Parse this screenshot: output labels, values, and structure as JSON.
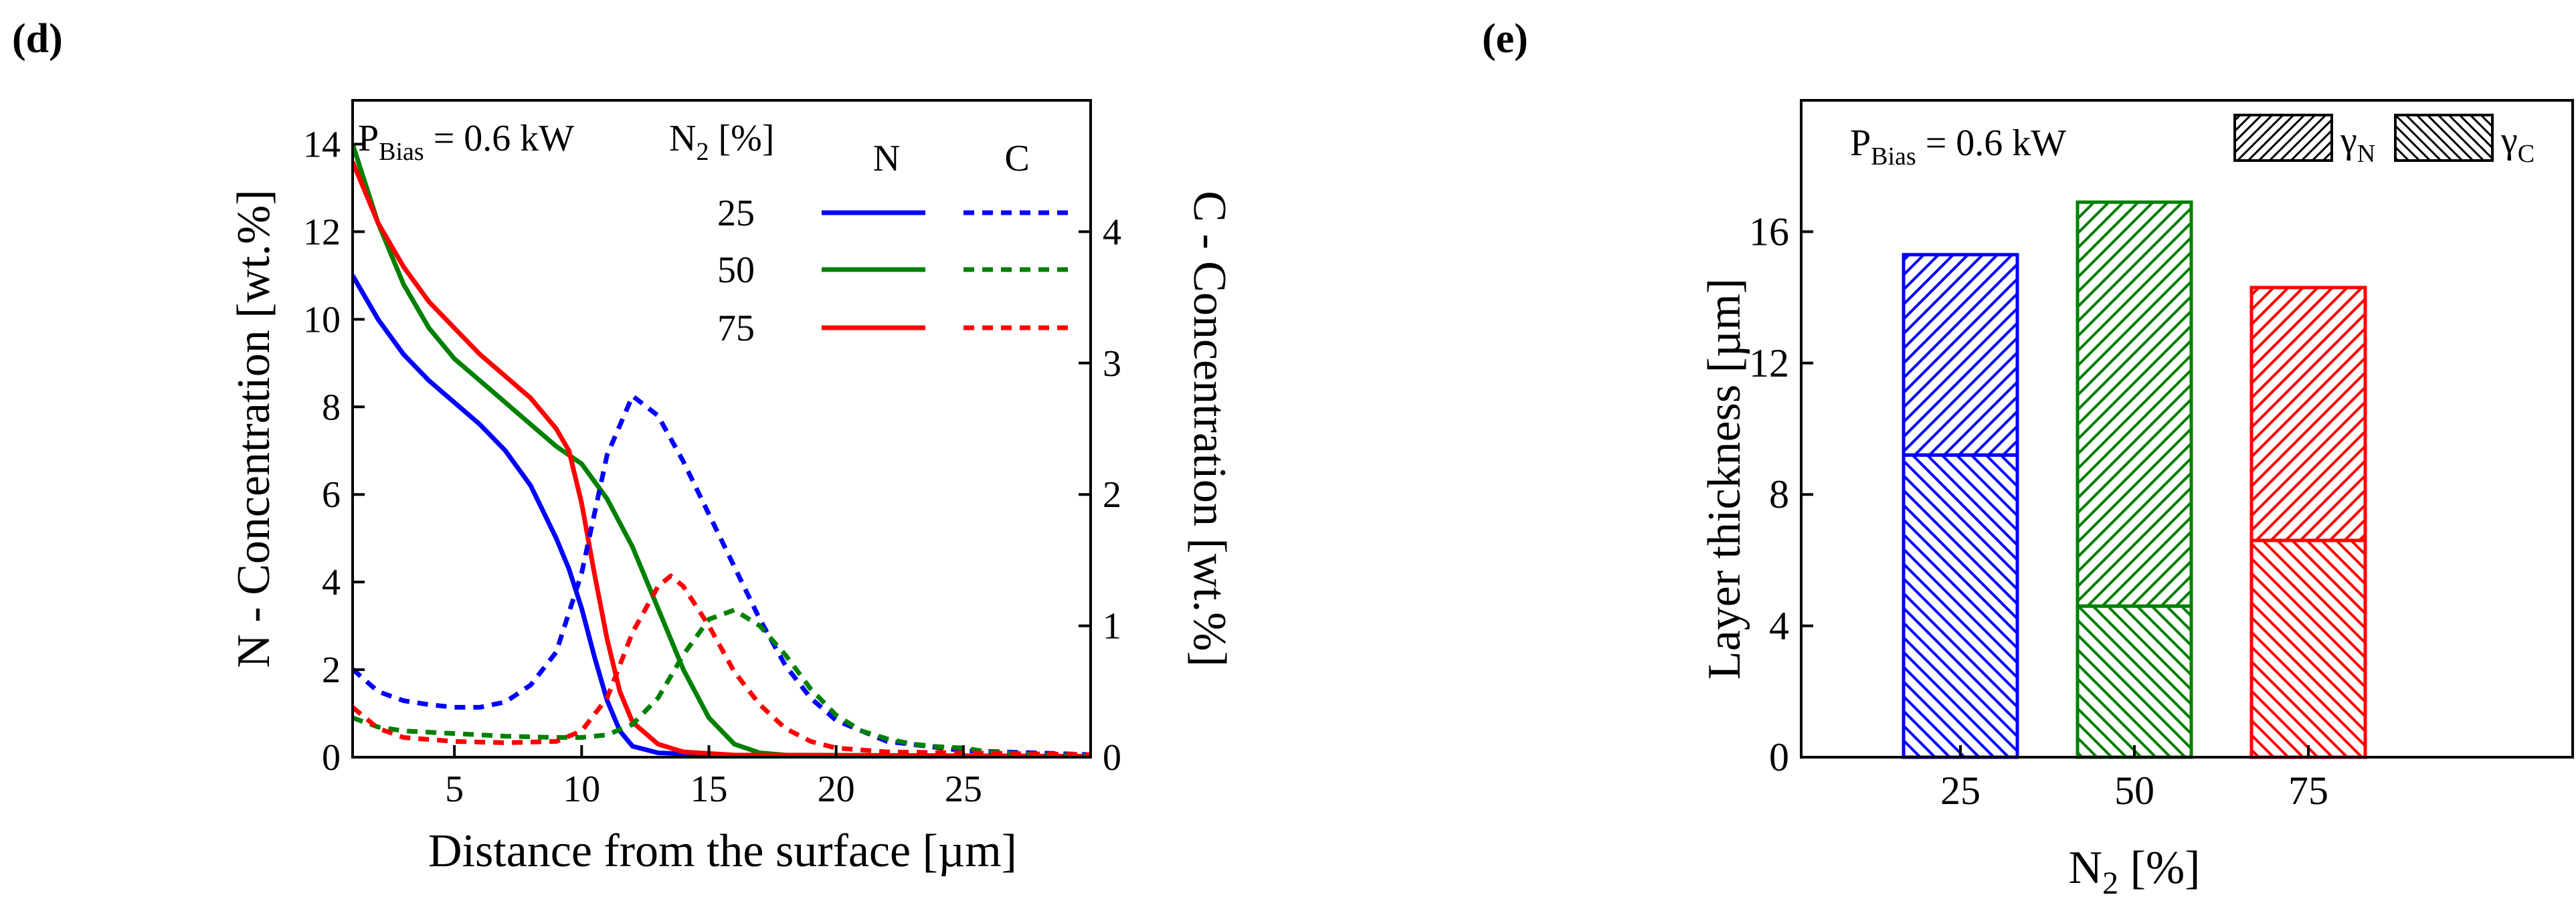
{
  "chart_data": [
    {
      "panel_label": "(d)",
      "type": "line",
      "xlabel": "Distance from the surface [µm]",
      "ylabel_left": "N - Concentration [wt.%]",
      "ylabel_right": "C - Concentration [wt.%]",
      "xlim": [
        1,
        30
      ],
      "ylim_left": [
        0,
        15
      ],
      "ylim_right": [
        0,
        5
      ],
      "x_ticks": [
        5,
        10,
        15,
        20,
        25
      ],
      "y_ticks_left": [
        0,
        2,
        4,
        6,
        8,
        10,
        12,
        14
      ],
      "y_ticks_right": [
        0,
        1,
        2,
        3,
        4
      ],
      "annotation": {
        "main": "P",
        "sub": "Bias",
        "rest": " = 0.6 kW"
      },
      "legend_header": {
        "n2_main": "N",
        "n2_sub": "2",
        "n2_rest": " [%]",
        "col_n": "N",
        "col_c": "C"
      },
      "legend_labels": [
        "25",
        "50",
        "75"
      ],
      "series": [
        {
          "name": "25",
          "element": "N",
          "axis": "left",
          "color": "#0000ff",
          "style": "solid",
          "points": [
            [
              1,
              11
            ],
            [
              2,
              10
            ],
            [
              3,
              9.2
            ],
            [
              4,
              8.6
            ],
            [
              5,
              8.1
            ],
            [
              6,
              7.6
            ],
            [
              7,
              7.0
            ],
            [
              8,
              6.2
            ],
            [
              9,
              5.0
            ],
            [
              9.5,
              4.3
            ],
            [
              10,
              3.4
            ],
            [
              10.5,
              2.3
            ],
            [
              11,
              1.3
            ],
            [
              11.5,
              0.6
            ],
            [
              12,
              0.25
            ],
            [
              13,
              0.1
            ],
            [
              15,
              0.05
            ],
            [
              20,
              0.02
            ],
            [
              30,
              0.02
            ]
          ]
        },
        {
          "name": "50",
          "element": "N",
          "axis": "left",
          "color": "#008000",
          "style": "solid",
          "points": [
            [
              1,
              14
            ],
            [
              2,
              12.2
            ],
            [
              3,
              10.8
            ],
            [
              4,
              9.8
            ],
            [
              5,
              9.1
            ],
            [
              6,
              8.6
            ],
            [
              7,
              8.1
            ],
            [
              8,
              7.6
            ],
            [
              9,
              7.1
            ],
            [
              10,
              6.7
            ],
            [
              11,
              5.9
            ],
            [
              12,
              4.8
            ],
            [
              13,
              3.4
            ],
            [
              14,
              2.0
            ],
            [
              15,
              0.9
            ],
            [
              16,
              0.3
            ],
            [
              17,
              0.1
            ],
            [
              18,
              0.05
            ],
            [
              30,
              0.02
            ]
          ]
        },
        {
          "name": "75",
          "element": "N",
          "axis": "left",
          "color": "#ff0000",
          "style": "solid",
          "points": [
            [
              1,
              13.6
            ],
            [
              2,
              12.2
            ],
            [
              3,
              11.2
            ],
            [
              4,
              10.4
            ],
            [
              5,
              9.8
            ],
            [
              6,
              9.2
            ],
            [
              7,
              8.7
            ],
            [
              8,
              8.2
            ],
            [
              9,
              7.5
            ],
            [
              9.5,
              7.0
            ],
            [
              10,
              5.8
            ],
            [
              10.5,
              4.2
            ],
            [
              11,
              2.7
            ],
            [
              11.5,
              1.5
            ],
            [
              12,
              0.8
            ],
            [
              13,
              0.3
            ],
            [
              14,
              0.12
            ],
            [
              16,
              0.05
            ],
            [
              30,
              0.02
            ]
          ]
        },
        {
          "name": "25",
          "element": "C",
          "axis": "right",
          "color": "#0000ff",
          "style": "dashed",
          "points": [
            [
              1,
              0.67
            ],
            [
              2,
              0.5
            ],
            [
              3,
              0.43
            ],
            [
              4,
              0.4
            ],
            [
              5,
              0.38
            ],
            [
              6,
              0.38
            ],
            [
              7,
              0.42
            ],
            [
              8,
              0.55
            ],
            [
              9,
              0.8
            ],
            [
              10,
              1.4
            ],
            [
              11,
              2.3
            ],
            [
              12,
              2.75
            ],
            [
              13,
              2.6
            ],
            [
              14,
              2.25
            ],
            [
              15,
              1.85
            ],
            [
              16,
              1.45
            ],
            [
              17,
              1.05
            ],
            [
              18,
              0.7
            ],
            [
              19,
              0.45
            ],
            [
              20,
              0.28
            ],
            [
              22,
              0.12
            ],
            [
              25,
              0.05
            ],
            [
              30,
              0.02
            ]
          ]
        },
        {
          "name": "50",
          "element": "C",
          "axis": "right",
          "color": "#008000",
          "style": "dashed",
          "points": [
            [
              1,
              0.3
            ],
            [
              2,
              0.23
            ],
            [
              3,
              0.2
            ],
            [
              5,
              0.18
            ],
            [
              7,
              0.16
            ],
            [
              9,
              0.15
            ],
            [
              10,
              0.15
            ],
            [
              11,
              0.17
            ],
            [
              12,
              0.25
            ],
            [
              13,
              0.45
            ],
            [
              14,
              0.78
            ],
            [
              15,
              1.05
            ],
            [
              16,
              1.12
            ],
            [
              17,
              1.0
            ],
            [
              18,
              0.78
            ],
            [
              19,
              0.52
            ],
            [
              20,
              0.32
            ],
            [
              21,
              0.2
            ],
            [
              22,
              0.14
            ],
            [
              23,
              0.1
            ],
            [
              24,
              0.08
            ],
            [
              25,
              0.07
            ],
            [
              26,
              0.04
            ],
            [
              28,
              0.02
            ],
            [
              30,
              0.01
            ]
          ]
        },
        {
          "name": "75",
          "element": "C",
          "axis": "right",
          "color": "#ff0000",
          "style": "dashed",
          "points": [
            [
              1,
              0.38
            ],
            [
              2,
              0.22
            ],
            [
              3,
              0.15
            ],
            [
              5,
              0.12
            ],
            [
              7,
              0.11
            ],
            [
              9,
              0.12
            ],
            [
              10,
              0.2
            ],
            [
              11,
              0.45
            ],
            [
              12,
              0.95
            ],
            [
              13,
              1.3
            ],
            [
              13.5,
              1.38
            ],
            [
              14,
              1.3
            ],
            [
              15,
              1.0
            ],
            [
              16,
              0.65
            ],
            [
              17,
              0.4
            ],
            [
              18,
              0.22
            ],
            [
              19,
              0.12
            ],
            [
              20,
              0.07
            ],
            [
              22,
              0.04
            ],
            [
              30,
              0.02
            ]
          ]
        }
      ]
    },
    {
      "panel_label": "(e)",
      "type": "bar",
      "stacked": true,
      "xlabel": {
        "main": "N",
        "sub": "2",
        "rest": " [%]"
      },
      "ylabel": "Layer thickness [µm]",
      "ylim": [
        0,
        20
      ],
      "y_ticks": [
        0,
        4,
        8,
        12,
        16
      ],
      "categories": [
        "25",
        "50",
        "75"
      ],
      "colors": [
        "#0000ff",
        "#008000",
        "#ff0000"
      ],
      "annotation": {
        "main": "P",
        "sub": "Bias",
        "rest": " = 0.6 kW"
      },
      "legend": [
        {
          "name": "γ",
          "sub": "N",
          "hatch": "forward"
        },
        {
          "name": "γ",
          "sub": "C",
          "hatch": "backward"
        }
      ],
      "series": [
        {
          "name": "γC",
          "values": [
            9.2,
            4.6,
            6.6
          ]
        },
        {
          "name": "γN",
          "values": [
            6.1,
            12.3,
            7.7
          ]
        }
      ]
    }
  ]
}
